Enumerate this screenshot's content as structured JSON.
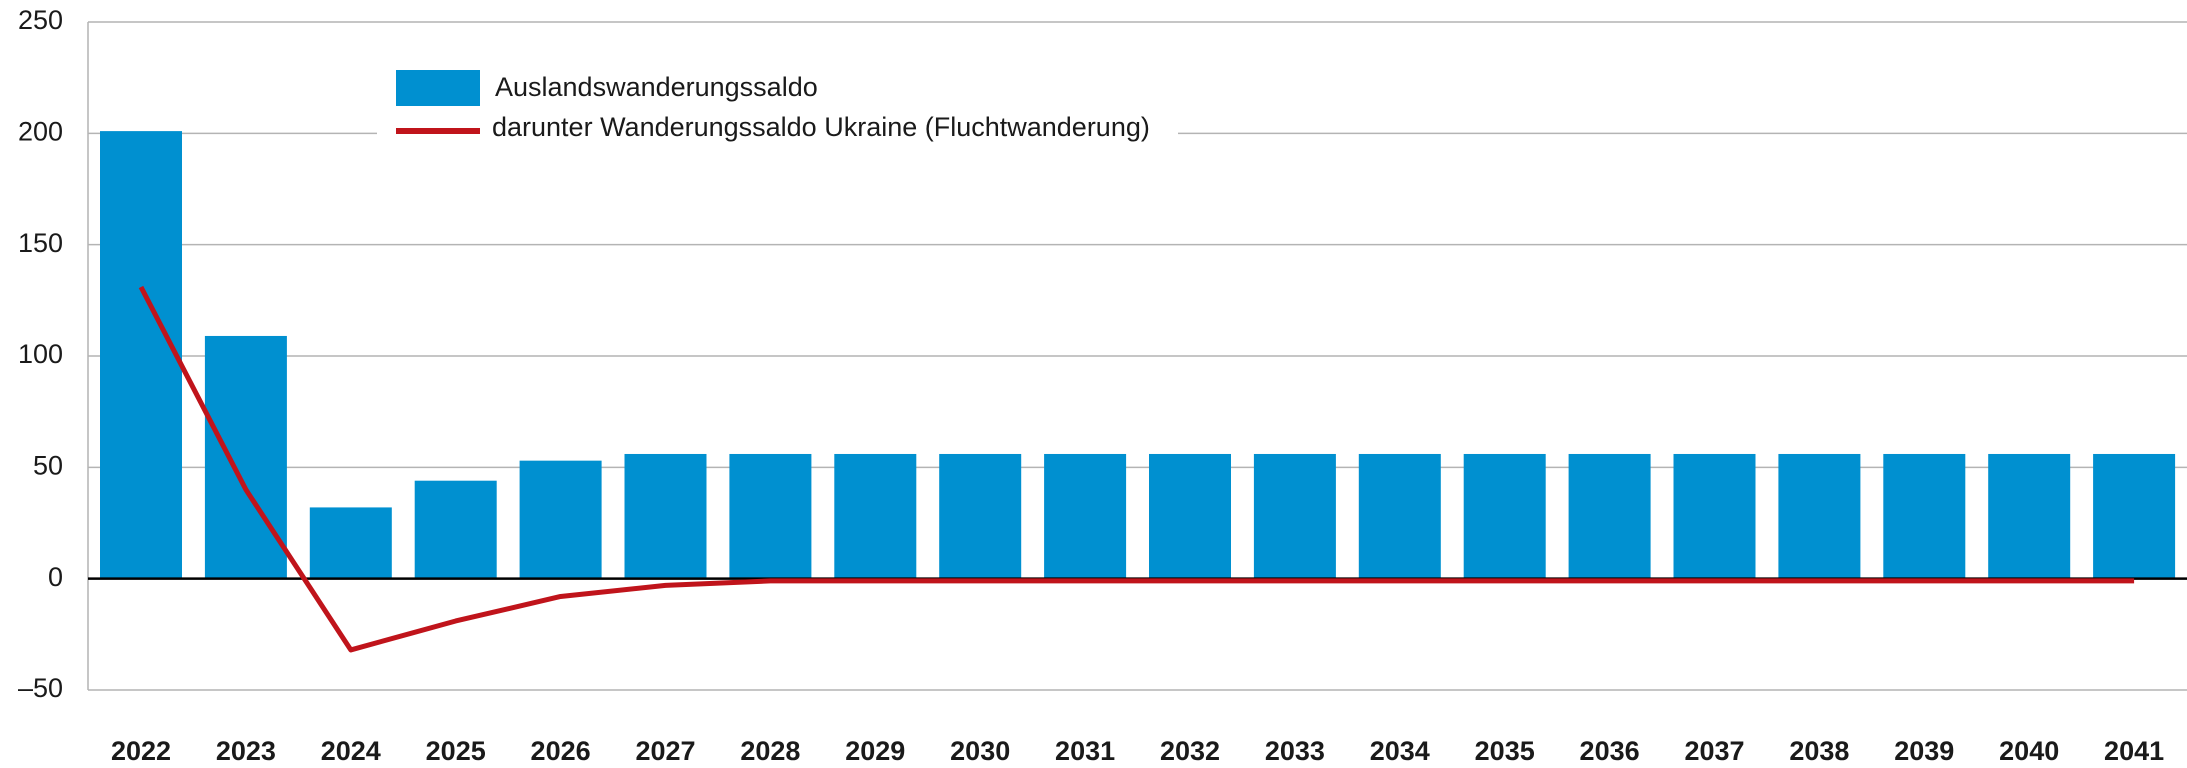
{
  "chart_data": {
    "type": "bar_line",
    "categories": [
      "2022",
      "2023",
      "2024",
      "2025",
      "2026",
      "2027",
      "2028",
      "2029",
      "2030",
      "2031",
      "2032",
      "2033",
      "2034",
      "2035",
      "2036",
      "2037",
      "2038",
      "2039",
      "2040",
      "2041"
    ],
    "series": [
      {
        "name": "Auslandswanderungssaldo",
        "type": "bar",
        "color": "#0090d0",
        "values": [
          201,
          109,
          32,
          44,
          53,
          56,
          56,
          56,
          56,
          56,
          56,
          56,
          56,
          56,
          56,
          56,
          56,
          56,
          56,
          56
        ]
      },
      {
        "name": "darunter Wanderungssaldo Ukraine (Fluchtwanderung)",
        "type": "line",
        "color": "#c0141b",
        "values": [
          131,
          40,
          -32,
          -19,
          -8,
          -3,
          -1,
          -1,
          -1,
          -1,
          -1,
          -1,
          -1,
          -1,
          -1,
          -1,
          -1,
          -1,
          -1,
          -1
        ]
      }
    ],
    "ylim": [
      -50,
      250
    ],
    "yticks": [
      {
        "value": -50,
        "label": "–50"
      },
      0,
      50,
      100,
      150,
      200,
      250
    ],
    "grid": true
  }
}
